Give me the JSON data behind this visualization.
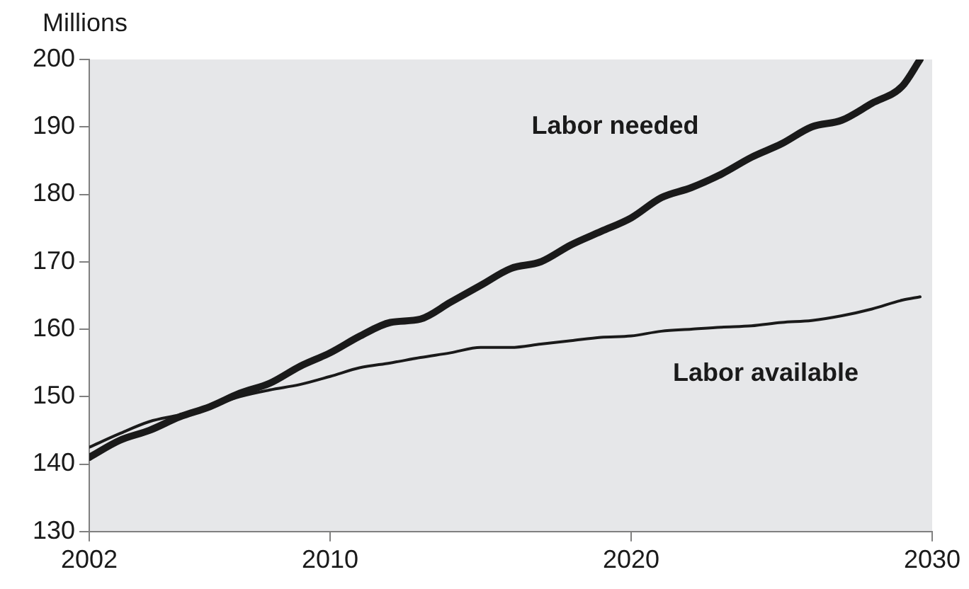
{
  "chart_data": {
    "type": "line",
    "ylabel": "Millions",
    "xlim": [
      2002,
      2030
    ],
    "xticks": [
      2002,
      2010,
      2020,
      2030
    ],
    "ylim": [
      130,
      200
    ],
    "yticks": [
      130,
      140,
      150,
      160,
      170,
      180,
      190,
      200
    ],
    "grid": false,
    "legend": false,
    "marker": "none",
    "line_style": "solid",
    "series": [
      {
        "name": "Labor needed",
        "color": "#1a1a1a",
        "x": [
          2002,
          2003,
          2004,
          2005,
          2006,
          2007,
          2008,
          2009,
          2010,
          2011,
          2012,
          2013,
          2014,
          2015,
          2016,
          2017,
          2018,
          2019,
          2020,
          2021,
          2022,
          2023,
          2024,
          2025,
          2026,
          2027,
          2028,
          2029,
          2029.6
        ],
        "values": [
          141,
          143.5,
          145,
          147,
          148.5,
          150.5,
          152,
          154.5,
          156.5,
          159,
          161,
          161.5,
          164,
          166.5,
          169,
          170,
          172.5,
          174.5,
          176.5,
          179.5,
          181,
          183,
          185.5,
          187.5,
          190,
          191,
          193.5,
          196,
          200
        ]
      },
      {
        "name": "Labor available",
        "color": "#1a1a1a",
        "x": [
          2002,
          2003,
          2004,
          2005,
          2006,
          2007,
          2008,
          2009,
          2010,
          2011,
          2012,
          2013,
          2014,
          2015,
          2016,
          2017,
          2018,
          2019,
          2020,
          2021,
          2022,
          2023,
          2024,
          2025,
          2026,
          2027,
          2028,
          2029,
          2029.6
        ],
        "values": [
          142.5,
          144.5,
          146.3,
          147.3,
          148.5,
          150,
          151,
          151.8,
          153,
          154.3,
          155,
          155.8,
          156.5,
          157.3,
          157.3,
          157.8,
          158.3,
          158.8,
          159,
          159.7,
          160,
          160.3,
          160.5,
          161,
          161.3,
          162,
          163,
          164.3,
          164.8
        ]
      }
    ]
  }
}
